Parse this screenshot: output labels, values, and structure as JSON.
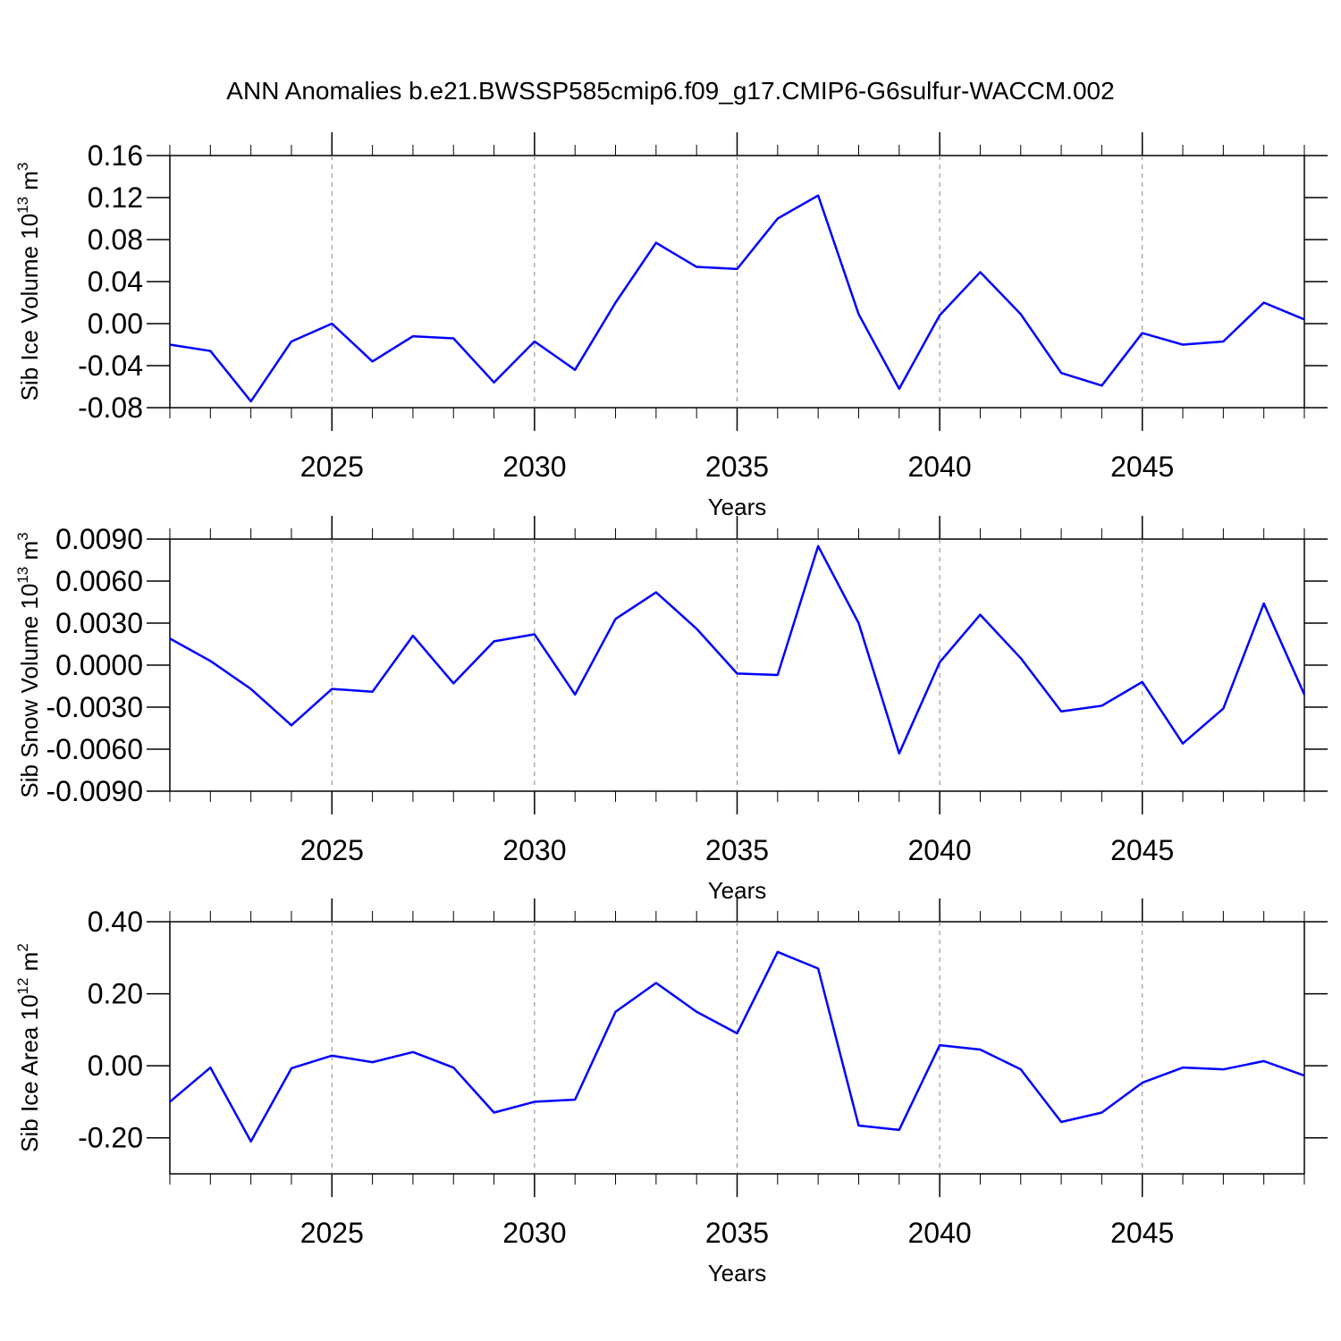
{
  "title": "ANN Anomalies b.e21.BWSSP585cmip6.f09_g17.CMIP6-G6sulfur-WACCM.002",
  "chart_data": [
    {
      "type": "line",
      "ylabel": [
        "Sib Ice Volume 10",
        "13",
        " m",
        "3"
      ],
      "xlabel": "Years",
      "x": [
        2021,
        2022,
        2023,
        2024,
        2025,
        2026,
        2027,
        2028,
        2029,
        2030,
        2031,
        2032,
        2033,
        2034,
        2035,
        2036,
        2037,
        2038,
        2039,
        2040,
        2041,
        2042,
        2043,
        2044,
        2045,
        2046,
        2047,
        2048,
        2049
      ],
      "xlim": [
        2021,
        2049
      ],
      "xticks": [
        2025,
        2030,
        2035,
        2040,
        2045
      ],
      "xgrid": true,
      "ylim": [
        -0.08,
        0.16
      ],
      "yticks": [
        {
          "value": -0.08,
          "label": "-0.08"
        },
        {
          "value": -0.04,
          "label": "-0.04"
        },
        {
          "value": 0,
          "label": "0.00"
        },
        {
          "value": 0.04,
          "label": "0.04"
        },
        {
          "value": 0.08,
          "label": "0.08"
        },
        {
          "value": 0.12,
          "label": "0.12"
        },
        {
          "value": 0.16,
          "label": "0.16"
        }
      ],
      "series": [
        {
          "color": "#0000ff",
          "values": [
            -0.02,
            -0.026,
            -0.074,
            -0.017,
            0.0,
            -0.036,
            -0.012,
            -0.014,
            -0.056,
            -0.017,
            -0.044,
            0.02,
            0.077,
            0.054,
            0.052,
            0.1,
            0.122,
            0.009,
            -0.062,
            0.008,
            0.049,
            0.009,
            -0.047,
            -0.059,
            -0.009,
            -0.02,
            -0.017,
            0.02,
            0.004
          ]
        }
      ]
    },
    {
      "type": "line",
      "ylabel": [
        "Sib Snow Volume 10",
        "13",
        " m",
        "3"
      ],
      "xlabel": "Years",
      "x": [
        2021,
        2022,
        2023,
        2024,
        2025,
        2026,
        2027,
        2028,
        2029,
        2030,
        2031,
        2032,
        2033,
        2034,
        2035,
        2036,
        2037,
        2038,
        2039,
        2040,
        2041,
        2042,
        2043,
        2044,
        2045,
        2046,
        2047,
        2048,
        2049
      ],
      "xlim": [
        2021,
        2049
      ],
      "xticks": [
        2025,
        2030,
        2035,
        2040,
        2045
      ],
      "xgrid": true,
      "ylim": [
        -0.009,
        0.009
      ],
      "yticks": [
        {
          "value": -0.009,
          "label": "-0.0090"
        },
        {
          "value": -0.006,
          "label": "-0.0060"
        },
        {
          "value": -0.003,
          "label": "-0.0030"
        },
        {
          "value": 0,
          "label": "0.0000"
        },
        {
          "value": 0.003,
          "label": "0.0030"
        },
        {
          "value": 0.006,
          "label": "0.0060"
        },
        {
          "value": 0.009,
          "label": "0.0090"
        }
      ],
      "series": [
        {
          "color": "#0000ff",
          "values": [
            0.0019,
            0.0003,
            -0.0017,
            -0.0043,
            -0.0017,
            -0.0019,
            0.0021,
            -0.0013,
            0.0017,
            0.0022,
            -0.0021,
            0.0033,
            0.0052,
            0.0026,
            -0.0006,
            -0.0007,
            0.0085,
            0.003,
            -0.0063,
            0.0002,
            0.0036,
            0.0005,
            -0.0033,
            -0.0029,
            -0.0012,
            -0.0056,
            -0.0031,
            0.0044,
            -0.0021
          ]
        }
      ]
    },
    {
      "type": "line",
      "ylabel": [
        "Sib Ice Area 10",
        "12",
        " m",
        "2"
      ],
      "xlabel": "Years",
      "x": [
        2021,
        2022,
        2023,
        2024,
        2025,
        2026,
        2027,
        2028,
        2029,
        2030,
        2031,
        2032,
        2033,
        2034,
        2035,
        2036,
        2037,
        2038,
        2039,
        2040,
        2041,
        2042,
        2043,
        2044,
        2045,
        2046,
        2047,
        2048,
        2049
      ],
      "xlim": [
        2021,
        2049
      ],
      "xticks": [
        2025,
        2030,
        2035,
        2040,
        2045
      ],
      "xgrid": true,
      "ylim": [
        -0.3,
        0.4
      ],
      "yticks": [
        {
          "value": -0.2,
          "label": "-0.20"
        },
        {
          "value": 0,
          "label": "0.00"
        },
        {
          "value": 0.2,
          "label": "0.20"
        },
        {
          "value": 0.4,
          "label": "0.40"
        }
      ],
      "series": [
        {
          "color": "#0000ff",
          "values": [
            -0.1,
            -0.005,
            -0.21,
            -0.007,
            0.028,
            0.01,
            0.038,
            -0.005,
            -0.13,
            -0.1,
            -0.094,
            0.15,
            0.23,
            0.15,
            0.09,
            0.316,
            0.27,
            -0.166,
            -0.178,
            0.057,
            0.045,
            -0.01,
            -0.156,
            -0.13,
            -0.047,
            -0.005,
            -0.01,
            0.013,
            -0.027
          ]
        }
      ]
    }
  ]
}
